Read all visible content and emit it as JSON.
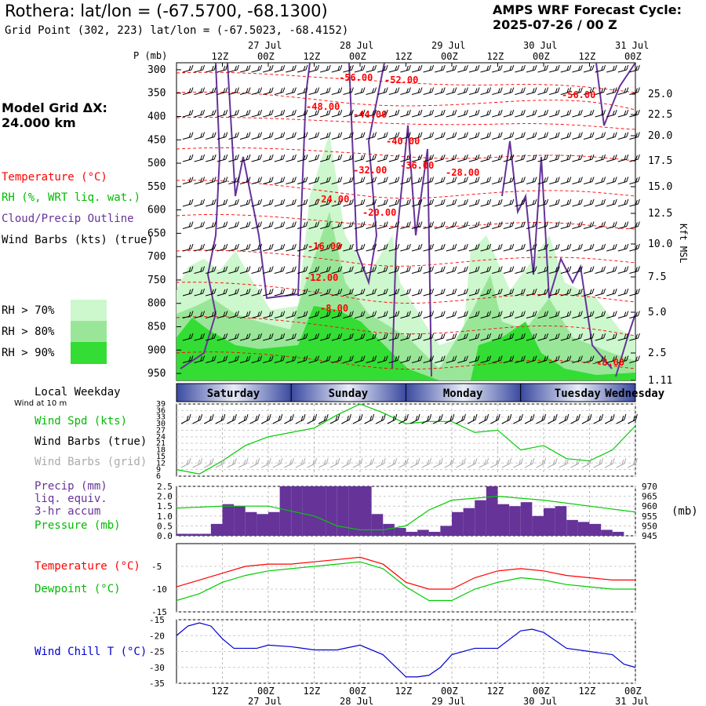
{
  "header": {
    "title": "Rothera:  lat/lon = (-67.5700, -68.1300)",
    "subtitle": "Grid Point (302, 223) lat/lon = (-67.5023, -68.4152)",
    "cycle_line1": "AMPS WRF Forecast Cycle:",
    "cycle_line2": "2025-07-26 / 00  Z"
  },
  "left_panel": {
    "grid_res_line1": "Model Grid ΔX:",
    "grid_res_line2": " 24.000 km",
    "legend_temperature": "Temperature (°C)",
    "legend_rh": "RH (%, WRT liq. wat.)",
    "legend_cloud": "Cloud/Precip Outline",
    "legend_wind": "Wind Barbs (kts) (true)",
    "rh_levels": [
      "RH > 70%",
      "RH > 80%",
      "RH > 90%"
    ],
    "rh_colors": [
      "#cdf7cd",
      "#99e699",
      "#33dd33"
    ],
    "local_weekday": "Local Weekday",
    "wind_at_10m": "Wind at 10 m",
    "legend_wind_spd": "Wind Spd (kts)",
    "legend_wind_barbs_true": "Wind Barbs (true)",
    "legend_wind_barbs_grid": "Wind Barbs (grid)",
    "legend_precip_1": "Precip (mm)",
    "legend_precip_2": "liq. equiv.",
    "legend_precip_3": "3-hr accum",
    "legend_pressure": "Pressure (mb)",
    "legend_temp2": "Temperature (°C)",
    "legend_dewpoint": "Dewpoint (°C)",
    "legend_windchill": "Wind Chill T (°C)"
  },
  "colors": {
    "temperature": "#ff0000",
    "dewpoint": "#00cc00",
    "cloud_outline": "#663399",
    "precip": "#663399",
    "pressure": "#00cc00",
    "windspd": "#00cc00",
    "windchill": "#0000cc",
    "grid_barbs": "#aaaaaa",
    "weekday_band": "#3a4aa0"
  },
  "axis": {
    "p_label": "P (mb)",
    "kft_label": "Kft MSL",
    "mb_label": "(mb)",
    "time_ticks": [
      "12Z",
      "00Z",
      "12Z",
      "00Z",
      "12Z",
      "00Z",
      "12Z",
      "00Z",
      "12Z",
      "00Z"
    ],
    "date_labels": [
      "27 Jul",
      "28 Jul",
      "29 Jul",
      "30 Jul",
      "31 Jul"
    ],
    "weekdays": [
      "Saturday",
      "Sunday",
      "Monday",
      "Tuesday",
      "Wednesday"
    ]
  },
  "chart_data": [
    {
      "type": "heatmap",
      "name": "time-height cross section",
      "y_pressure_levels": [
        300,
        350,
        400,
        450,
        500,
        550,
        600,
        650,
        700,
        750,
        800,
        850,
        900,
        950
      ],
      "right_axis_kft": [
        "25.0",
        "22.5",
        "20.0",
        "17.5",
        "15.0",
        "12.5",
        "10.0",
        "7.5",
        "5.0",
        "2.5",
        "1.11"
      ],
      "temperature_contour_labels": [
        "-56.00",
        "-52.00",
        "-48.00",
        "-44.00",
        "-40.00",
        "-36.00",
        "-32.00",
        "-28.00",
        "-24.00",
        "-20.00",
        "-16.00",
        "-12.00",
        "-8.00",
        "-56.00",
        "-8.00"
      ]
    },
    {
      "type": "line",
      "name": "10 m wind speed",
      "yticks": [
        "39",
        "36",
        "33",
        "30",
        "27",
        "24",
        "21",
        "18",
        "15",
        "12",
        "9",
        "6"
      ],
      "ylim": [
        6,
        39
      ],
      "x_hours": [
        0,
        6,
        12,
        18,
        24,
        30,
        36,
        42,
        48,
        54,
        60,
        66,
        72,
        78,
        84,
        90,
        96,
        102,
        108,
        114,
        120
      ],
      "values": [
        9,
        7,
        13,
        20,
        24,
        26,
        28,
        34,
        39,
        35,
        30,
        31,
        31,
        26,
        27,
        18,
        20,
        14,
        13,
        18,
        29
      ]
    },
    {
      "type": "bar",
      "name": "precip 3-hr accum and pressure",
      "left_yticks": [
        "2.5",
        "2.0",
        "1.5",
        "1.0",
        "0.5",
        "0.0"
      ],
      "right_yticks": [
        "970",
        "965",
        "960",
        "955",
        "950",
        "945"
      ],
      "ylim": [
        0,
        2.5
      ],
      "y2lim": [
        945,
        970
      ],
      "x_hours": [
        3,
        6,
        9,
        12,
        15,
        18,
        21,
        24,
        27,
        30,
        33,
        36,
        39,
        42,
        45,
        48,
        51,
        54,
        57,
        60,
        63,
        66,
        69,
        72,
        75,
        78,
        81,
        84,
        87,
        90,
        93,
        96,
        99,
        102,
        105,
        108,
        111,
        114,
        117
      ],
      "precip": [
        0.1,
        0.1,
        0.1,
        0.6,
        1.6,
        1.5,
        1.2,
        1.1,
        1.2,
        2.5,
        2.5,
        2.5,
        2.5,
        2.5,
        2.5,
        2.5,
        2.5,
        1.1,
        0.6,
        0.4,
        0.2,
        0.3,
        0.2,
        0.5,
        1.2,
        1.4,
        1.8,
        2.5,
        1.6,
        1.5,
        1.7,
        1.0,
        1.4,
        1.5,
        0.8,
        0.7,
        0.6,
        0.3,
        0.2
      ],
      "pressure_hours": [
        0,
        12,
        24,
        36,
        42,
        48,
        54,
        60,
        66,
        72,
        84,
        96,
        108,
        120
      ],
      "pressure": [
        959,
        960,
        960,
        955,
        950,
        948,
        948,
        950,
        958,
        963,
        965,
        963,
        960,
        957
      ]
    },
    {
      "type": "line",
      "name": "temperature and dewpoint",
      "yticks": [
        "-5",
        "-10",
        "-15"
      ],
      "ylim": [
        -15,
        0
      ],
      "x_hours": [
        0,
        6,
        12,
        18,
        24,
        30,
        36,
        42,
        48,
        54,
        60,
        66,
        72,
        78,
        84,
        90,
        96,
        102,
        108,
        114,
        120
      ],
      "series": [
        {
          "name": "Temperature",
          "values": [
            -9.5,
            -8,
            -6.5,
            -5,
            -4.5,
            -4.5,
            -4,
            -3.5,
            -3,
            -4.5,
            -8.5,
            -10,
            -10,
            -7.5,
            -6,
            -5.5,
            -6,
            -7,
            -7.5,
            -8,
            -8
          ]
        },
        {
          "name": "Dewpoint",
          "values": [
            -12.5,
            -11,
            -8.5,
            -7,
            -6,
            -5.5,
            -5,
            -4.5,
            -4,
            -5.5,
            -9.5,
            -12.5,
            -12.5,
            -10,
            -8.5,
            -7.5,
            -8,
            -9,
            -9.5,
            -10,
            -10
          ]
        }
      ]
    },
    {
      "type": "line",
      "name": "wind chill",
      "yticks": [
        "-15",
        "-20",
        "-25",
        "-30",
        "-35"
      ],
      "ylim": [
        -35,
        -15
      ],
      "x_hours": [
        0,
        3,
        6,
        9,
        12,
        15,
        18,
        21,
        24,
        30,
        36,
        42,
        48,
        54,
        60,
        63,
        66,
        69,
        72,
        78,
        84,
        90,
        93,
        96,
        102,
        108,
        114,
        117,
        120
      ],
      "values": [
        -20,
        -17,
        -16,
        -17,
        -21,
        -24,
        -24,
        -24,
        -23,
        -23.5,
        -24.5,
        -24.5,
        -23,
        -26,
        -33,
        -33,
        -32.5,
        -30,
        -26,
        -24,
        -24,
        -18.5,
        -18,
        -19,
        -24,
        -25,
        -26,
        -29,
        -30
      ]
    }
  ]
}
